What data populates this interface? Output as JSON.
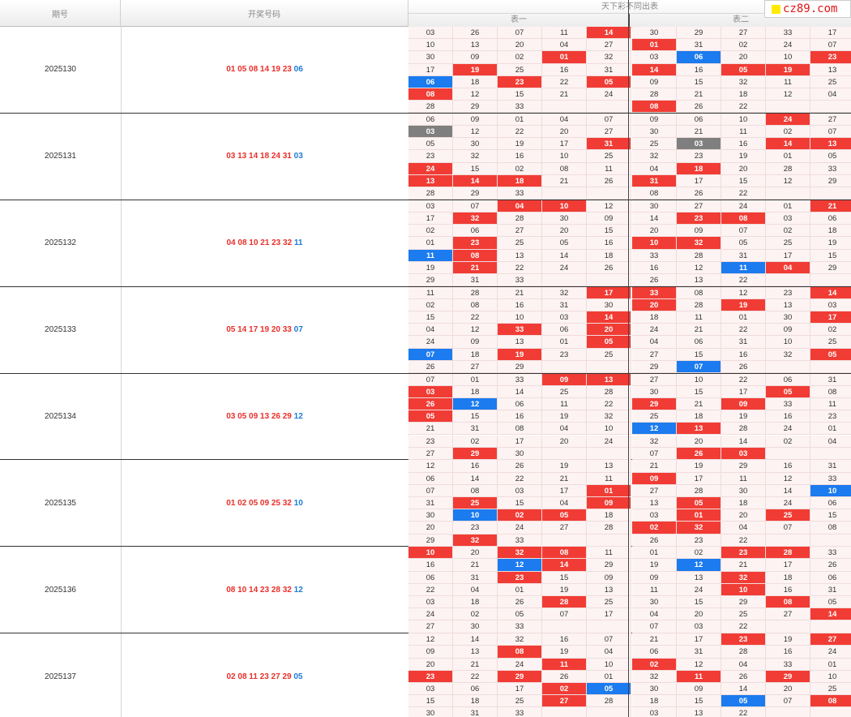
{
  "header": {
    "col_issue": "期号",
    "col_numbers": "开奖号码",
    "group_title": "天下彩不同出表",
    "table1": "表一",
    "table2": "表二"
  },
  "logo": {
    "text": "cz89.com"
  },
  "colors": {
    "red": "#f13c35",
    "blue": "#1b7bef",
    "grey": "#7f7f7f"
  },
  "draws": [
    {
      "issue": "2025130",
      "reds": "01 05 08 14 19 23",
      "blue": "06",
      "rows": [
        [
          "03",
          "26",
          "07",
          "11",
          "14r",
          "30",
          "29",
          "27",
          "33",
          "17"
        ],
        [
          "10",
          "13",
          "20",
          "04",
          "27",
          "01r",
          "31",
          "02",
          "24",
          "07"
        ],
        [
          "30",
          "09",
          "02",
          "01r",
          "32",
          "03",
          "06b",
          "20",
          "10",
          "23r"
        ],
        [
          "17",
          "19r",
          "25",
          "16",
          "31",
          "14r",
          "16",
          "05r",
          "19r",
          "13"
        ],
        [
          "06b",
          "18",
          "23r",
          "22",
          "05r",
          "09",
          "15",
          "32",
          "11",
          "25"
        ],
        [
          "08r",
          "12",
          "15",
          "21",
          "24",
          "28",
          "21",
          "18",
          "12",
          "04"
        ],
        [
          "28",
          "29",
          "33",
          "",
          "",
          "08r",
          "26",
          "22",
          "",
          ""
        ]
      ]
    },
    {
      "issue": "2025131",
      "reds": "03 13 14 18 24 31",
      "blue": "03",
      "rows": [
        [
          "06",
          "09",
          "01",
          "04",
          "07",
          "09",
          "06",
          "10",
          "24r",
          "27"
        ],
        [
          "03g",
          "12",
          "22",
          "20",
          "27",
          "30",
          "21",
          "11",
          "02",
          "07"
        ],
        [
          "05",
          "30",
          "19",
          "17",
          "31r",
          "25",
          "03g",
          "16",
          "14r",
          "13r"
        ],
        [
          "23",
          "32",
          "16",
          "10",
          "25",
          "32",
          "23",
          "19",
          "01",
          "05"
        ],
        [
          "24r",
          "15",
          "02",
          "08",
          "11",
          "04",
          "18r",
          "20",
          "28",
          "33"
        ],
        [
          "13r",
          "14r",
          "18r",
          "21",
          "26",
          "31r",
          "17",
          "15",
          "12",
          "29"
        ],
        [
          "28",
          "29",
          "33",
          "",
          "",
          "08",
          "26",
          "22",
          "",
          ""
        ]
      ]
    },
    {
      "issue": "2025132",
      "reds": "04 08 10 21 23 32",
      "blue": "11",
      "rows": [
        [
          "03",
          "07",
          "04r",
          "10r",
          "12",
          "30",
          "27",
          "24",
          "01",
          "21r"
        ],
        [
          "17",
          "32r",
          "28",
          "30",
          "09",
          "14",
          "23r",
          "08r",
          "03",
          "06"
        ],
        [
          "02",
          "06",
          "27",
          "20",
          "15",
          "20",
          "09",
          "07",
          "02",
          "18"
        ],
        [
          "01",
          "23r",
          "25",
          "05",
          "16",
          "10r",
          "32r",
          "05",
          "25",
          "19"
        ],
        [
          "11b",
          "08r",
          "13",
          "14",
          "18",
          "33",
          "28",
          "31",
          "17",
          "15"
        ],
        [
          "19",
          "21r",
          "22",
          "24",
          "26",
          "16",
          "12",
          "11b",
          "04r",
          "29"
        ],
        [
          "29",
          "31",
          "33",
          "",
          "",
          "26",
          "13",
          "22",
          "",
          ""
        ]
      ]
    },
    {
      "issue": "2025133",
      "reds": "05 14 17 19 20 33",
      "blue": "07",
      "rows": [
        [
          "11",
          "28",
          "21",
          "32",
          "17r",
          "33r",
          "08",
          "12",
          "23",
          "14r"
        ],
        [
          "02",
          "08",
          "16",
          "31",
          "30",
          "20r",
          "28",
          "19r",
          "13",
          "03"
        ],
        [
          "15",
          "22",
          "10",
          "03",
          "14r",
          "18",
          "11",
          "01",
          "30",
          "17r"
        ],
        [
          "04",
          "12",
          "33r",
          "06",
          "20r",
          "24",
          "21",
          "22",
          "09",
          "02"
        ],
        [
          "24",
          "09",
          "13",
          "01",
          "05r",
          "04",
          "06",
          "31",
          "10",
          "25"
        ],
        [
          "07b",
          "18",
          "19r",
          "23",
          "25",
          "27",
          "15",
          "16",
          "32",
          "05r"
        ],
        [
          "26",
          "27",
          "29",
          "",
          "",
          "29",
          "07b",
          "26",
          "",
          ""
        ]
      ]
    },
    {
      "issue": "2025134",
      "reds": "03 05 09 13 26 29",
      "blue": "12",
      "rows": [
        [
          "07",
          "01",
          "33",
          "09r",
          "13r",
          "27",
          "10",
          "22",
          "06",
          "31"
        ],
        [
          "03r",
          "18",
          "14",
          "25",
          "28",
          "30",
          "15",
          "17",
          "05r",
          "08"
        ],
        [
          "26r",
          "12b",
          "06",
          "11",
          "22",
          "29r",
          "21",
          "09r",
          "33",
          "11"
        ],
        [
          "05r",
          "15",
          "16",
          "19",
          "32",
          "25",
          "18",
          "19",
          "16",
          "23"
        ],
        [
          "21",
          "31",
          "08",
          "04",
          "10",
          "12b",
          "13r",
          "28",
          "24",
          "01"
        ],
        [
          "23",
          "02",
          "17",
          "20",
          "24",
          "32",
          "20",
          "14",
          "02",
          "04"
        ],
        [
          "27",
          "29r",
          "30",
          "",
          "",
          "07",
          "26r",
          "03r",
          "",
          ""
        ]
      ]
    },
    {
      "issue": "2025135",
      "reds": "01 02 05 09 25 32",
      "blue": "10",
      "rows": [
        [
          "12",
          "16",
          "26",
          "19",
          "13",
          "21",
          "19",
          "29",
          "16",
          "31"
        ],
        [
          "06",
          "14",
          "22",
          "21",
          "11",
          "09r",
          "17",
          "11",
          "12",
          "33"
        ],
        [
          "07",
          "08",
          "03",
          "17",
          "01r",
          "27",
          "28",
          "30",
          "14",
          "10b"
        ],
        [
          "31",
          "25r",
          "15",
          "04",
          "09r",
          "13",
          "05r",
          "18",
          "24",
          "06"
        ],
        [
          "30",
          "10b",
          "02r",
          "05r",
          "18",
          "03",
          "01r",
          "20",
          "25r",
          "15"
        ],
        [
          "20",
          "23",
          "24",
          "27",
          "28",
          "02r",
          "32r",
          "04",
          "07",
          "08"
        ],
        [
          "29",
          "32r",
          "33",
          "",
          "",
          "26",
          "23",
          "22",
          "",
          ""
        ]
      ]
    },
    {
      "issue": "2025136",
      "reds": "08 10 14 23 28 32",
      "blue": "12",
      "rows": [
        [
          "10r",
          "20",
          "32r",
          "08r",
          "11",
          "01",
          "02",
          "23r",
          "28r",
          "33"
        ],
        [
          "16",
          "21",
          "12b",
          "14r",
          "29",
          "19",
          "12b",
          "21",
          "17",
          "26"
        ],
        [
          "06",
          "31",
          "23r",
          "15",
          "09",
          "09",
          "13",
          "32r",
          "18",
          "06"
        ],
        [
          "22",
          "04",
          "01",
          "19",
          "13",
          "11",
          "24",
          "10r",
          "16",
          "31"
        ],
        [
          "03",
          "18",
          "26",
          "28r",
          "25",
          "30",
          "15",
          "29",
          "08r",
          "05"
        ],
        [
          "24",
          "02",
          "05",
          "07",
          "17",
          "04",
          "20",
          "25",
          "27",
          "14r"
        ],
        [
          "27",
          "30",
          "33",
          "",
          "",
          "07",
          "03",
          "22",
          "",
          ""
        ]
      ]
    },
    {
      "issue": "2025137",
      "reds": "02 08 11 23 27 29",
      "blue": "05",
      "rows": [
        [
          "12",
          "14",
          "32",
          "16",
          "07",
          "21",
          "17",
          "23r",
          "19",
          "27r"
        ],
        [
          "09",
          "13",
          "08r",
          "19",
          "04",
          "06",
          "31",
          "28",
          "16",
          "24"
        ],
        [
          "20",
          "21",
          "24",
          "11r",
          "10",
          "02r",
          "12",
          "04",
          "33",
          "01"
        ],
        [
          "23r",
          "22",
          "29r",
          "26",
          "01",
          "32",
          "11r",
          "26",
          "29r",
          "10"
        ],
        [
          "03",
          "06",
          "17",
          "02r",
          "05b",
          "30",
          "09",
          "14",
          "20",
          "25"
        ],
        [
          "15",
          "18",
          "25",
          "27r",
          "28",
          "18",
          "15",
          "05b",
          "07",
          "08r"
        ],
        [
          "30",
          "31",
          "33",
          "",
          "",
          "03",
          "13",
          "22",
          "",
          ""
        ]
      ]
    }
  ]
}
